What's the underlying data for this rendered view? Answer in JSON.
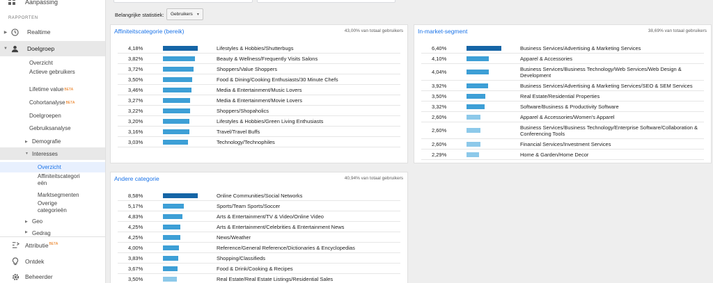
{
  "sidebar": {
    "top_item": "Aanpassing",
    "section": "RAPPORTEN",
    "realtime": "Realtime",
    "audience": "Doelgroep",
    "overview": "Overzicht",
    "active_users": "Actieve gebruikers",
    "lifetime_value": "Lifetime value",
    "cohort": "Cohortanalyse",
    "audiences": "Doelgroepen",
    "usage": "Gebruiksanalyse",
    "demographics": "Demografie",
    "interests": "Interesses",
    "int_overview": "Overzicht",
    "affinity": "Affiniteitscategorieën",
    "market": "Marktsegmenten",
    "other": "Overige categorieën",
    "geo": "Geo",
    "behavior": "Gedrag",
    "attribution": "Attributie",
    "discover": "Ontdek",
    "admin": "Beheerder",
    "beta": "BETA"
  },
  "stat": {
    "label": "Belangrijke statistiek:",
    "value": "Gebruikers"
  },
  "colors": {
    "bar_dark": "#1565a6",
    "bar_mid": "#3d9fd6",
    "bar_light": "#8dc9ea",
    "accent": "#1a73e8"
  },
  "affinity": {
    "title": "Affiniteitscategorie (bereik)",
    "total": "43,00% van totaal gebruikers",
    "rows": [
      {
        "pct": "4,18%",
        "value": 4.18,
        "label": "Lifestyles & Hobbies/Shutterbugs"
      },
      {
        "pct": "3,82%",
        "value": 3.82,
        "label": "Beauty & Wellness/Frequently Visits Salons"
      },
      {
        "pct": "3,72%",
        "value": 3.72,
        "label": "Shoppers/Value Shoppers"
      },
      {
        "pct": "3,50%",
        "value": 3.5,
        "label": "Food & Dining/Cooking Enthusiasts/30 Minute Chefs"
      },
      {
        "pct": "3,46%",
        "value": 3.46,
        "label": "Media & Entertainment/Music Lovers"
      },
      {
        "pct": "3,27%",
        "value": 3.27,
        "label": "Media & Entertainment/Movie Lovers"
      },
      {
        "pct": "3,22%",
        "value": 3.22,
        "label": "Shoppers/Shopaholics"
      },
      {
        "pct": "3,20%",
        "value": 3.2,
        "label": "Lifestyles & Hobbies/Green Living Enthusiasts"
      },
      {
        "pct": "3,16%",
        "value": 3.16,
        "label": "Travel/Travel Buffs"
      },
      {
        "pct": "3,03%",
        "value": 3.03,
        "label": "Technology/Technophiles"
      }
    ]
  },
  "inmarket": {
    "title": "In-market-segment",
    "total": "38,69% van totaal gebruikers",
    "rows": [
      {
        "pct": "6,40%",
        "value": 6.4,
        "label": "Business Services/Advertising & Marketing Services"
      },
      {
        "pct": "4,10%",
        "value": 4.1,
        "label": "Apparel & Accessories"
      },
      {
        "pct": "4,04%",
        "value": 4.04,
        "label": "Business Services/Business Technology/Web Services/Web Design & Development"
      },
      {
        "pct": "3,92%",
        "value": 3.92,
        "label": "Business Services/Advertising & Marketing Services/SEO & SEM Services"
      },
      {
        "pct": "3,50%",
        "value": 3.5,
        "label": "Real Estate/Residential Properties"
      },
      {
        "pct": "3,32%",
        "value": 3.32,
        "label": "Software/Business & Productivity Software"
      },
      {
        "pct": "2,60%",
        "value": 2.6,
        "label": "Apparel & Accessories/Women's Apparel"
      },
      {
        "pct": "2,60%",
        "value": 2.6,
        "label": "Business Services/Business Technology/Enterprise Software/Collaboration & Conferencing Tools"
      },
      {
        "pct": "2,60%",
        "value": 2.6,
        "label": "Financial Services/Investment Services"
      },
      {
        "pct": "2,29%",
        "value": 2.29,
        "label": "Home & Garden/Home Decor"
      }
    ]
  },
  "other": {
    "title": "Andere categorie",
    "total": "40,94% van totaal gebruikers",
    "rows": [
      {
        "pct": "8,58%",
        "value": 8.58,
        "label": "Online Communities/Social Networks"
      },
      {
        "pct": "5,17%",
        "value": 5.17,
        "label": "Sports/Team Sports/Soccer"
      },
      {
        "pct": "4,83%",
        "value": 4.83,
        "label": "Arts & Entertainment/TV & Video/Online Video"
      },
      {
        "pct": "4,25%",
        "value": 4.25,
        "label": "Arts & Entertainment/Celebrities & Entertainment News"
      },
      {
        "pct": "4,25%",
        "value": 4.25,
        "label": "News/Weather"
      },
      {
        "pct": "4,00%",
        "value": 4.0,
        "label": "Reference/General Reference/Dictionaries & Encyclopedias"
      },
      {
        "pct": "3,83%",
        "value": 3.83,
        "label": "Shopping/Classifieds"
      },
      {
        "pct": "3,67%",
        "value": 3.67,
        "label": "Food & Drink/Cooking & Recipes"
      },
      {
        "pct": "3,50%",
        "value": 3.5,
        "label": "Real Estate/Real Estate Listings/Residential Sales"
      }
    ]
  }
}
